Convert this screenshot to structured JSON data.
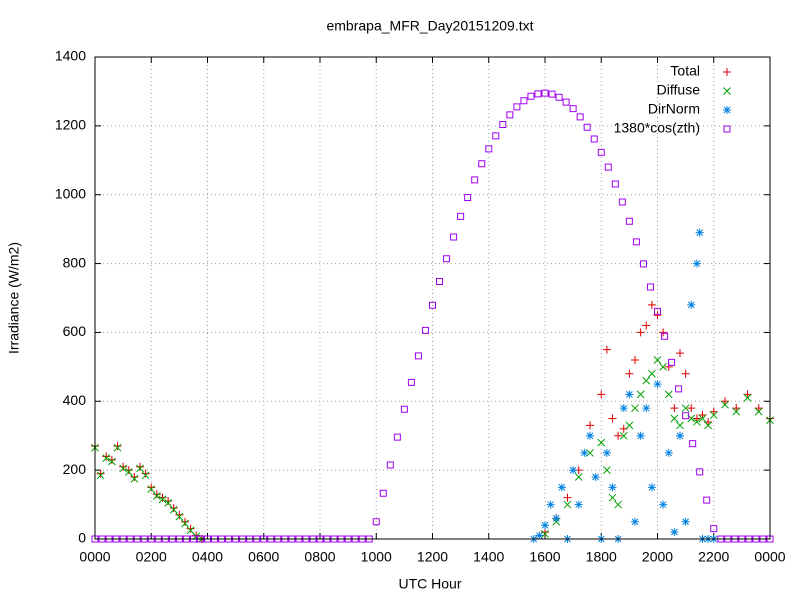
{
  "chart_data": {
    "type": "scatter",
    "title": "embrapa_MFR_Day20151209.txt",
    "x_label": "UTC Hour",
    "y_label": "Irradiance (W/m2)",
    "xlim": [
      0,
      24
    ],
    "ylim": [
      0,
      1400
    ],
    "xticks": [
      {
        "value": 0,
        "label": "0000"
      },
      {
        "value": 2,
        "label": "0200"
      },
      {
        "value": 4,
        "label": "0400"
      },
      {
        "value": 6,
        "label": "0600"
      },
      {
        "value": 8,
        "label": "0800"
      },
      {
        "value": 10,
        "label": "1000"
      },
      {
        "value": 12,
        "label": "1200"
      },
      {
        "value": 14,
        "label": "1400"
      },
      {
        "value": 16,
        "label": "1600"
      },
      {
        "value": 18,
        "label": "1800"
      },
      {
        "value": 20,
        "label": "2000"
      },
      {
        "value": 22,
        "label": "2200"
      },
      {
        "value": 24,
        "label": "0000"
      }
    ],
    "yticks": [
      0,
      200,
      400,
      600,
      800,
      1000,
      1200,
      1400
    ],
    "grid": true,
    "legend": "top-right",
    "series": [
      {
        "name": "Total",
        "color": "#e00000",
        "marker": "plus",
        "x": [
          0,
          0.2,
          0.4,
          0.6,
          0.8,
          1.0,
          1.2,
          1.4,
          1.6,
          1.8,
          2.0,
          2.2,
          2.4,
          2.6,
          2.8,
          3.0,
          3.2,
          3.4,
          3.6,
          3.8,
          16.0,
          16.4,
          16.8,
          17.2,
          17.6,
          18.0,
          18.2,
          18.4,
          18.6,
          18.8,
          19.0,
          19.2,
          19.4,
          19.6,
          19.8,
          20.0,
          20.2,
          20.4,
          20.6,
          20.8,
          21.0,
          21.2,
          21.4,
          21.6,
          21.8,
          22.0,
          22.4,
          22.8,
          23.2,
          23.6,
          24.0
        ],
        "values": [
          270,
          190,
          240,
          230,
          270,
          210,
          200,
          180,
          210,
          190,
          150,
          130,
          120,
          110,
          90,
          70,
          50,
          30,
          10,
          0,
          20,
          60,
          120,
          200,
          330,
          420,
          550,
          350,
          300,
          320,
          480,
          520,
          600,
          620,
          680,
          650,
          600,
          500,
          380,
          540,
          480,
          380,
          350,
          360,
          340,
          370,
          400,
          380,
          420,
          380,
          350
        ]
      },
      {
        "name": "Diffuse",
        "color": "#00a000",
        "marker": "cross",
        "x": [
          0,
          0.2,
          0.4,
          0.6,
          0.8,
          1.0,
          1.2,
          1.4,
          1.6,
          1.8,
          2.0,
          2.2,
          2.4,
          2.6,
          2.8,
          3.0,
          3.2,
          3.4,
          3.6,
          3.8,
          16.0,
          16.4,
          16.8,
          17.2,
          17.6,
          18.0,
          18.2,
          18.4,
          18.6,
          18.8,
          19.0,
          19.2,
          19.4,
          19.6,
          19.8,
          20.0,
          20.2,
          20.4,
          20.6,
          20.8,
          21.0,
          21.2,
          21.4,
          21.6,
          21.8,
          22.0,
          22.4,
          22.8,
          23.2,
          23.6,
          24.0
        ],
        "values": [
          265,
          185,
          235,
          225,
          265,
          205,
          195,
          175,
          205,
          185,
          145,
          125,
          115,
          105,
          85,
          65,
          45,
          25,
          8,
          0,
          15,
          50,
          100,
          180,
          250,
          280,
          200,
          120,
          100,
          300,
          330,
          380,
          420,
          460,
          480,
          520,
          500,
          420,
          350,
          330,
          380,
          350,
          340,
          350,
          330,
          360,
          390,
          370,
          410,
          370,
          345
        ]
      },
      {
        "name": "DirNorm",
        "color": "#0080e0",
        "marker": "star",
        "x": [
          15.6,
          15.8,
          16.0,
          16.2,
          16.4,
          16.6,
          16.8,
          17.0,
          17.2,
          17.4,
          17.6,
          17.8,
          18.0,
          18.2,
          18.4,
          18.6,
          18.8,
          19.0,
          19.2,
          19.4,
          19.6,
          19.8,
          20.0,
          20.2,
          20.4,
          20.6,
          20.8,
          21.0,
          21.2,
          21.4,
          21.5,
          21.6,
          21.8,
          22.0
        ],
        "values": [
          0,
          10,
          40,
          100,
          60,
          150,
          0,
          200,
          100,
          250,
          300,
          180,
          0,
          250,
          150,
          0,
          380,
          420,
          50,
          300,
          380,
          150,
          450,
          100,
          250,
          20,
          300,
          50,
          680,
          800,
          890,
          0,
          0,
          0
        ]
      },
      {
        "name": "1380*cos(zth)",
        "color": "#a000f0",
        "marker": "square",
        "x": [
          0,
          0.25,
          0.5,
          0.75,
          1,
          1.25,
          1.5,
          1.75,
          2,
          2.25,
          2.5,
          2.75,
          3,
          3.25,
          3.5,
          3.75,
          4,
          4.25,
          4.5,
          4.75,
          5,
          5.25,
          5.5,
          5.75,
          6,
          6.25,
          6.5,
          6.75,
          7,
          7.25,
          7.5,
          7.75,
          8,
          8.25,
          8.5,
          8.75,
          9,
          9.25,
          9.5,
          9.75,
          10,
          10.25,
          10.5,
          10.75,
          11,
          11.25,
          11.5,
          11.75,
          12,
          12.25,
          12.5,
          12.75,
          13,
          13.25,
          13.5,
          13.75,
          14,
          14.25,
          14.5,
          14.75,
          15,
          15.25,
          15.5,
          15.75,
          16,
          16.25,
          16.5,
          16.75,
          17,
          17.25,
          17.5,
          17.75,
          18,
          18.25,
          18.5,
          18.75,
          19,
          19.25,
          19.5,
          19.75,
          20,
          20.25,
          20.5,
          20.75,
          21,
          21.25,
          21.5,
          21.75,
          22,
          22.25,
          22.5,
          22.75,
          23,
          23.25,
          23.5,
          23.75,
          24
        ],
        "values": [
          0,
          0,
          0,
          0,
          0,
          0,
          0,
          0,
          0,
          0,
          0,
          0,
          0,
          0,
          0,
          0,
          0,
          0,
          0,
          0,
          0,
          0,
          0,
          0,
          0,
          0,
          0,
          0,
          0,
          0,
          0,
          0,
          0,
          0,
          0,
          0,
          0,
          0,
          0,
          0,
          50,
          133,
          215,
          296,
          377,
          455,
          532,
          606,
          679,
          748,
          814,
          877,
          937,
          992,
          1043,
          1090,
          1133,
          1171,
          1204,
          1232,
          1255,
          1273,
          1286,
          1293,
          1295,
          1292,
          1283,
          1269,
          1250,
          1226,
          1196,
          1162,
          1123,
          1080,
          1031,
          979,
          923,
          863,
          799,
          732,
          661,
          589,
          513,
          436,
          358,
          277,
          195,
          113,
          30,
          0,
          0,
          0,
          0,
          0,
          0,
          0,
          0
        ]
      }
    ]
  }
}
